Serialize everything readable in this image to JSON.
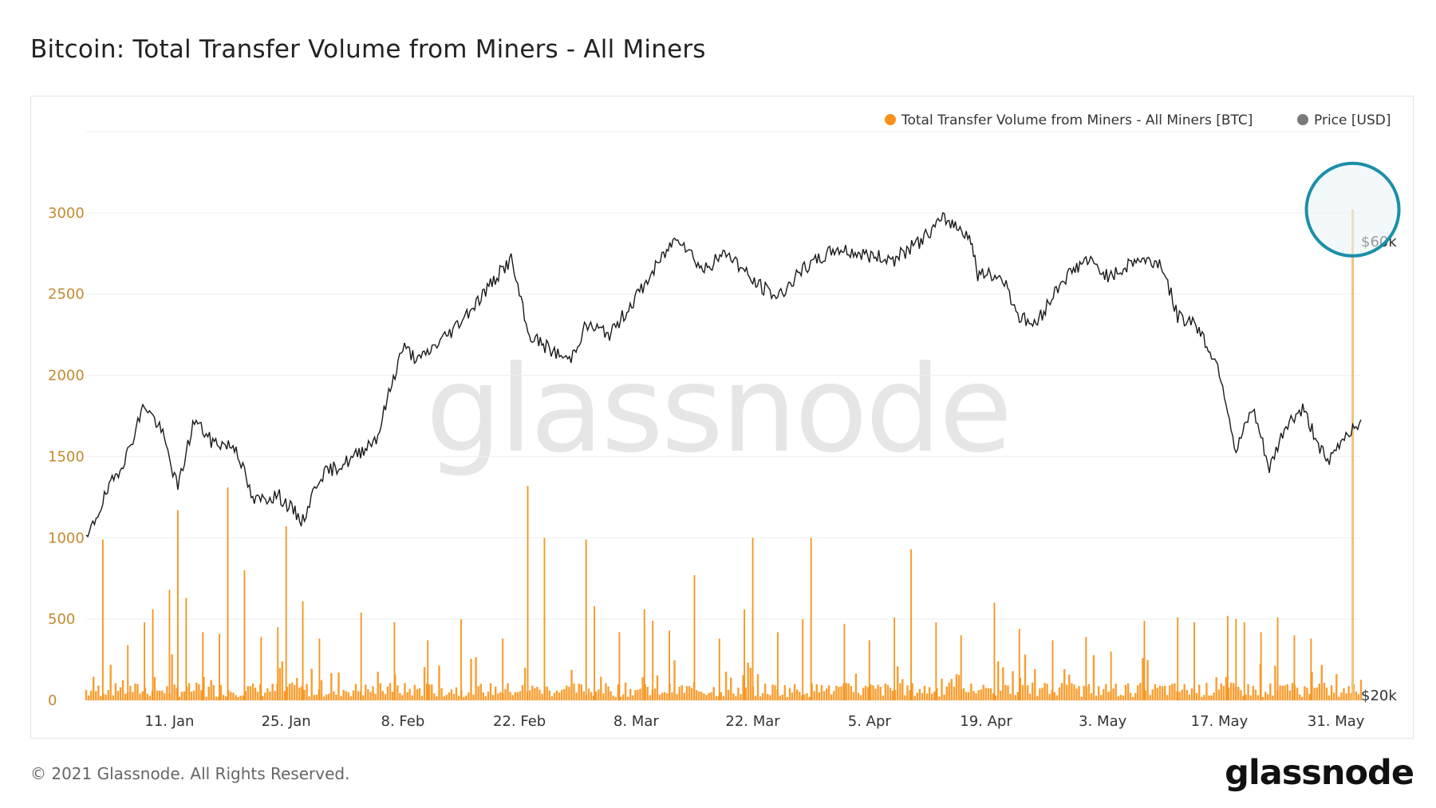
{
  "header": {
    "title": "Bitcoin: Total Transfer Volume from Miners - All Miners"
  },
  "footer": {
    "copyright": "© 2021 Glassnode. All Rights Reserved.",
    "logo": "glassnode"
  },
  "watermark": "glassnode",
  "colors": {
    "volume": "#f7931a",
    "volume_highlight": "#f3c27a",
    "price": "#1a1a1a",
    "price_legend": "#7a7a7a",
    "left_axis": "#c08b2e",
    "highlight_circle": "#1b8fa8",
    "grid": "#efefef"
  },
  "chart_data": {
    "type": "bar+line",
    "title": "Bitcoin: Total Transfer Volume from Miners - All Miners",
    "legend": {
      "placement": "top-right",
      "entries": [
        {
          "name": "Total Transfer Volume from Miners - All Miners [BTC]",
          "color": "#f7931a"
        },
        {
          "name": "Price [USD]",
          "color": "#7a7a7a"
        }
      ]
    },
    "x_axis": {
      "start": "2021-01-01",
      "end": "2021-06-03",
      "tick_labels": [
        {
          "date": "2021-01-11",
          "label": "11. Jan"
        },
        {
          "date": "2021-01-25",
          "label": "25. Jan"
        },
        {
          "date": "2021-02-08",
          "label": "8. Feb"
        },
        {
          "date": "2021-02-22",
          "label": "22. Feb"
        },
        {
          "date": "2021-03-08",
          "label": "8. Mar"
        },
        {
          "date": "2021-03-22",
          "label": "22. Mar"
        },
        {
          "date": "2021-04-05",
          "label": "5. Apr"
        },
        {
          "date": "2021-04-19",
          "label": "19. Apr"
        },
        {
          "date": "2021-05-03",
          "label": "3. May"
        },
        {
          "date": "2021-05-17",
          "label": "17. May"
        },
        {
          "date": "2021-05-31",
          "label": "31. May"
        }
      ]
    },
    "y_left": {
      "label": "",
      "range": [
        0,
        3500
      ],
      "ticks": [
        0,
        500,
        1000,
        1500,
        2000,
        2500,
        3000
      ],
      "tick_labels": [
        "0",
        "500",
        "1000",
        "1500",
        "2000",
        "2500",
        "3000"
      ]
    },
    "y_right": {
      "scale": "log",
      "tick_labels": [
        {
          "value": 20000,
          "label": "$20k"
        },
        {
          "value": 60000,
          "label": "$60k"
        }
      ]
    },
    "grid": true,
    "volume_spikes_btc": [
      [
        "2021-01-03",
        990
      ],
      [
        "2021-01-06",
        340
      ],
      [
        "2021-01-08",
        480
      ],
      [
        "2021-01-09",
        560
      ],
      [
        "2021-01-11",
        680
      ],
      [
        "2021-01-12",
        1170
      ],
      [
        "2021-01-13",
        630
      ],
      [
        "2021-01-15",
        420
      ],
      [
        "2021-01-17",
        410
      ],
      [
        "2021-01-18",
        1310
      ],
      [
        "2021-01-20",
        800
      ],
      [
        "2021-01-22",
        390
      ],
      [
        "2021-01-24",
        450
      ],
      [
        "2021-01-25",
        1070
      ],
      [
        "2021-01-27",
        610
      ],
      [
        "2021-01-29",
        380
      ],
      [
        "2021-02-03",
        540
      ],
      [
        "2021-02-07",
        480
      ],
      [
        "2021-02-11",
        370
      ],
      [
        "2021-02-15",
        500
      ],
      [
        "2021-02-20",
        380
      ],
      [
        "2021-02-23",
        1320
      ],
      [
        "2021-02-25",
        1000
      ],
      [
        "2021-03-02",
        990
      ],
      [
        "2021-03-03",
        580
      ],
      [
        "2021-03-06",
        420
      ],
      [
        "2021-03-09",
        560
      ],
      [
        "2021-03-10",
        490
      ],
      [
        "2021-03-12",
        430
      ],
      [
        "2021-03-15",
        770
      ],
      [
        "2021-03-18",
        380
      ],
      [
        "2021-03-21",
        560
      ],
      [
        "2021-03-22",
        1000
      ],
      [
        "2021-03-25",
        420
      ],
      [
        "2021-03-28",
        500
      ],
      [
        "2021-03-29",
        1000
      ],
      [
        "2021-04-02",
        470
      ],
      [
        "2021-04-05",
        370
      ],
      [
        "2021-04-08",
        510
      ],
      [
        "2021-04-10",
        930
      ],
      [
        "2021-04-13",
        480
      ],
      [
        "2021-04-16",
        400
      ],
      [
        "2021-04-20",
        600
      ],
      [
        "2021-04-23",
        440
      ],
      [
        "2021-04-27",
        370
      ],
      [
        "2021-05-01",
        390
      ],
      [
        "2021-05-04",
        300
      ],
      [
        "2021-05-08",
        490
      ],
      [
        "2021-05-12",
        510
      ],
      [
        "2021-05-14",
        480
      ],
      [
        "2021-05-18",
        520
      ],
      [
        "2021-05-19",
        500
      ],
      [
        "2021-05-20",
        480
      ],
      [
        "2021-05-22",
        420
      ],
      [
        "2021-05-24",
        510
      ],
      [
        "2021-05-26",
        400
      ],
      [
        "2021-05-28",
        380
      ],
      [
        "2021-06-02",
        3020
      ]
    ],
    "price_usd": [
      [
        "2021-01-01",
        29000
      ],
      [
        "2021-01-03",
        32000
      ],
      [
        "2021-01-06",
        36000
      ],
      [
        "2021-01-08",
        40500
      ],
      [
        "2021-01-10",
        38000
      ],
      [
        "2021-01-12",
        33000
      ],
      [
        "2021-01-14",
        39000
      ],
      [
        "2021-01-16",
        37000
      ],
      [
        "2021-01-19",
        36500
      ],
      [
        "2021-01-21",
        32000
      ],
      [
        "2021-01-24",
        32500
      ],
      [
        "2021-01-27",
        30500
      ],
      [
        "2021-01-29",
        34000
      ],
      [
        "2021-02-02",
        35500
      ],
      [
        "2021-02-05",
        37500
      ],
      [
        "2021-02-08",
        46500
      ],
      [
        "2021-02-10",
        45000
      ],
      [
        "2021-02-14",
        48500
      ],
      [
        "2021-02-17",
        52000
      ],
      [
        "2021-02-21",
        57500
      ],
      [
        "2021-02-23",
        48000
      ],
      [
        "2021-02-26",
        46000
      ],
      [
        "2021-02-28",
        45000
      ],
      [
        "2021-03-02",
        49000
      ],
      [
        "2021-03-05",
        48000
      ],
      [
        "2021-03-09",
        54000
      ],
      [
        "2021-03-13",
        61000
      ],
      [
        "2021-03-16",
        56000
      ],
      [
        "2021-03-19",
        58500
      ],
      [
        "2021-03-22",
        54500
      ],
      [
        "2021-03-25",
        52500
      ],
      [
        "2021-03-28",
        56000
      ],
      [
        "2021-04-01",
        59000
      ],
      [
        "2021-04-05",
        58000
      ],
      [
        "2021-04-08",
        57500
      ],
      [
        "2021-04-11",
        60000
      ],
      [
        "2021-04-14",
        63500
      ],
      [
        "2021-04-17",
        61000
      ],
      [
        "2021-04-18",
        55500
      ],
      [
        "2021-04-21",
        55000
      ],
      [
        "2021-04-23",
        50000
      ],
      [
        "2021-04-25",
        49000
      ],
      [
        "2021-04-28",
        54500
      ],
      [
        "2021-05-01",
        57500
      ],
      [
        "2021-05-04",
        55000
      ],
      [
        "2021-05-07",
        57500
      ],
      [
        "2021-05-10",
        57000
      ],
      [
        "2021-05-12",
        50000
      ],
      [
        "2021-05-14",
        49500
      ],
      [
        "2021-05-17",
        44000
      ],
      [
        "2021-05-19",
        36000
      ],
      [
        "2021-05-21",
        40000
      ],
      [
        "2021-05-23",
        34500
      ],
      [
        "2021-05-25",
        38500
      ],
      [
        "2021-05-27",
        40000
      ],
      [
        "2021-05-30",
        35000
      ],
      [
        "2021-06-01",
        37500
      ],
      [
        "2021-06-03",
        39000
      ]
    ],
    "annotations": [
      {
        "type": "circle",
        "target": "2021-06-02 volume spike (~3020 BTC)"
      }
    ]
  }
}
